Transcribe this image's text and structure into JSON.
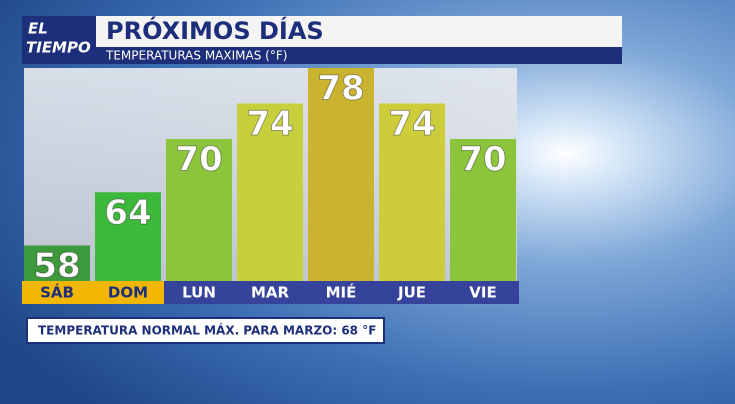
{
  "chart_data": {
    "type": "bar",
    "logo": [
      "EL",
      "TIEMPO"
    ],
    "title": "PRÓXIMOS DÍAS",
    "subtitle": "TEMPERATURAS MAXIMAS (°F)",
    "categories": [
      "SÁB",
      "DOM",
      "LUN",
      "MAR",
      "MIÉ",
      "JUE",
      "VIE"
    ],
    "values": [
      58,
      64,
      70,
      74,
      78,
      74,
      70
    ],
    "colors": [
      "#3c9a3c",
      "#3cb83a",
      "#8cc43c",
      "#c6d03c",
      "#c9b32f",
      "#cdcc3a",
      "#8cc43c"
    ],
    "label_colors": [
      "#f2b705",
      "#f2b705",
      "#35449a",
      "#35449a",
      "#35449a",
      "#35449a",
      "#35449a"
    ],
    "ylim": [
      54,
      78
    ],
    "note": "TEMPERATURA NORMAL MÁX. PARA MARZO: 68 °F"
  }
}
